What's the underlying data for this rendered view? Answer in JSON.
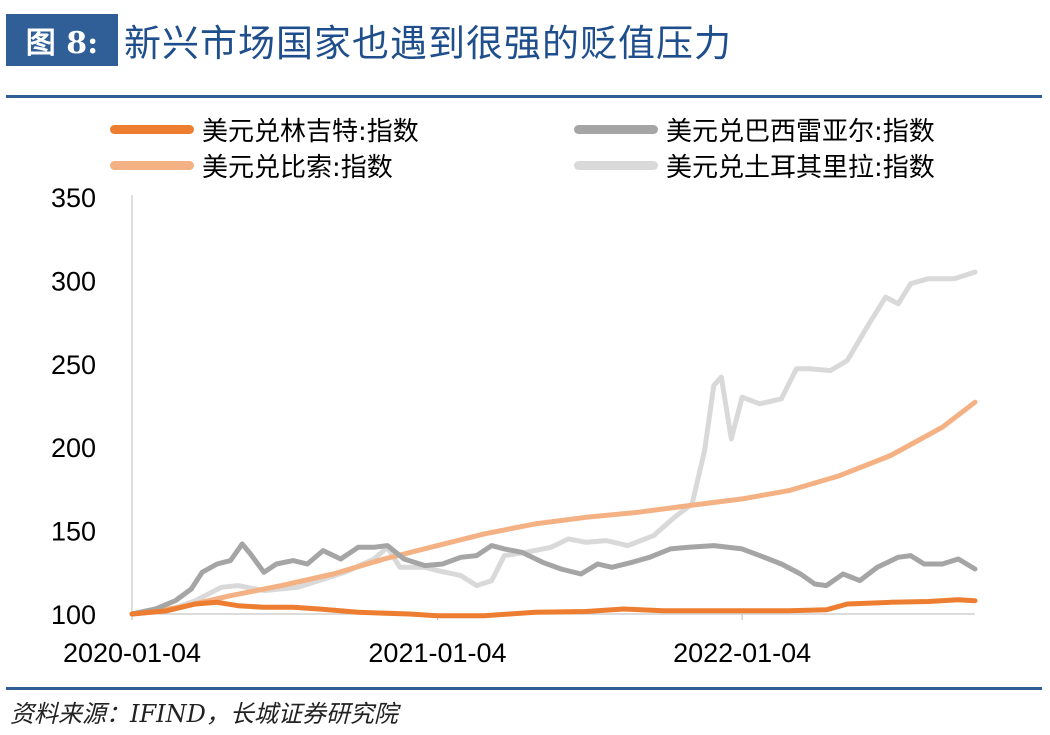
{
  "figure": {
    "badge": "图 8:",
    "title": "新兴市场国家也遇到很强的贬值压力",
    "source": "资料来源：IFIND，长城证券研究院"
  },
  "chart_data": {
    "type": "line",
    "title": "",
    "xlabel": "",
    "ylabel": "",
    "ylim": [
      100,
      350
    ],
    "yticks": [
      "350",
      "300",
      "250",
      "200",
      "150",
      "100"
    ],
    "xticks": [
      "2020-01-04",
      "2021-01-04",
      "2022-01-04"
    ],
    "x_range": [
      "2020-01-04",
      "2022-10-10"
    ],
    "grid": false,
    "legend_position": "top",
    "series": [
      {
        "name": "美元兑林吉特:指数",
        "color": "#ed7d31",
        "points": [
          [
            "2020-01-04",
            100
          ],
          [
            "2020-02-15",
            102
          ],
          [
            "2020-03-20",
            106
          ],
          [
            "2020-04-15",
            107
          ],
          [
            "2020-05-10",
            105
          ],
          [
            "2020-06-10",
            104
          ],
          [
            "2020-07-15",
            104
          ],
          [
            "2020-08-15",
            103
          ],
          [
            "2020-10-01",
            101
          ],
          [
            "2020-12-01",
            100
          ],
          [
            "2021-01-04",
            99
          ],
          [
            "2021-03-01",
            99
          ],
          [
            "2021-05-01",
            101
          ],
          [
            "2021-07-01",
            101.5
          ],
          [
            "2021-08-15",
            103
          ],
          [
            "2021-10-01",
            102
          ],
          [
            "2021-12-01",
            102
          ],
          [
            "2022-01-04",
            102
          ],
          [
            "2022-03-01",
            102
          ],
          [
            "2022-04-15",
            102.5
          ],
          [
            "2022-05-10",
            106
          ],
          [
            "2022-07-01",
            107
          ],
          [
            "2022-08-15",
            107.5
          ],
          [
            "2022-09-20",
            108.5
          ],
          [
            "2022-10-10",
            108
          ]
        ]
      },
      {
        "name": "美元兑巴西雷亚尔:指数",
        "color": "#a5a5a5",
        "points": [
          [
            "2020-01-04",
            100
          ],
          [
            "2020-02-01",
            103
          ],
          [
            "2020-02-25",
            108
          ],
          [
            "2020-03-15",
            115
          ],
          [
            "2020-03-28",
            125
          ],
          [
            "2020-04-15",
            130
          ],
          [
            "2020-05-01",
            132
          ],
          [
            "2020-05-15",
            142
          ],
          [
            "2020-05-25",
            136
          ],
          [
            "2020-06-10",
            125
          ],
          [
            "2020-06-25",
            130
          ],
          [
            "2020-07-15",
            132
          ],
          [
            "2020-08-01",
            130
          ],
          [
            "2020-08-20",
            138
          ],
          [
            "2020-09-10",
            133
          ],
          [
            "2020-10-01",
            140
          ],
          [
            "2020-10-20",
            140
          ],
          [
            "2020-11-05",
            141
          ],
          [
            "2020-11-25",
            133
          ],
          [
            "2020-12-20",
            129
          ],
          [
            "2021-01-10",
            130
          ],
          [
            "2021-02-01",
            134
          ],
          [
            "2021-02-20",
            135
          ],
          [
            "2021-03-10",
            141
          ],
          [
            "2021-03-25",
            139
          ],
          [
            "2021-04-15",
            137
          ],
          [
            "2021-05-10",
            131
          ],
          [
            "2021-06-01",
            127
          ],
          [
            "2021-06-25",
            124
          ],
          [
            "2021-07-15",
            130
          ],
          [
            "2021-08-01",
            128
          ],
          [
            "2021-08-25",
            131
          ],
          [
            "2021-09-15",
            134
          ],
          [
            "2021-10-10",
            139
          ],
          [
            "2021-11-01",
            140
          ],
          [
            "2021-12-01",
            141
          ],
          [
            "2022-01-04",
            139
          ],
          [
            "2022-01-25",
            135
          ],
          [
            "2022-02-20",
            130
          ],
          [
            "2022-03-15",
            124
          ],
          [
            "2022-04-01",
            118
          ],
          [
            "2022-04-15",
            117
          ],
          [
            "2022-05-05",
            124
          ],
          [
            "2022-05-25",
            120
          ],
          [
            "2022-06-15",
            128
          ],
          [
            "2022-07-10",
            134
          ],
          [
            "2022-07-25",
            135
          ],
          [
            "2022-08-10",
            130
          ],
          [
            "2022-09-01",
            130
          ],
          [
            "2022-09-20",
            133
          ],
          [
            "2022-10-10",
            127
          ]
        ]
      },
      {
        "name": "美元兑比索:指数",
        "color": "#f4b183",
        "points": [
          [
            "2020-01-04",
            100
          ],
          [
            "2020-03-01",
            104
          ],
          [
            "2020-05-01",
            111
          ],
          [
            "2020-07-01",
            117
          ],
          [
            "2020-09-01",
            124
          ],
          [
            "2020-11-01",
            133
          ],
          [
            "2021-01-04",
            141
          ],
          [
            "2021-03-01",
            148
          ],
          [
            "2021-05-01",
            154
          ],
          [
            "2021-07-01",
            158
          ],
          [
            "2021-09-01",
            161
          ],
          [
            "2021-11-01",
            165
          ],
          [
            "2022-01-04",
            169
          ],
          [
            "2022-03-01",
            174
          ],
          [
            "2022-05-01",
            183
          ],
          [
            "2022-07-01",
            195
          ],
          [
            "2022-09-01",
            212
          ],
          [
            "2022-10-10",
            227
          ]
        ]
      },
      {
        "name": "美元兑土耳其里拉:指数",
        "color": "#d9d9d9",
        "points": [
          [
            "2020-01-04",
            100
          ],
          [
            "2020-02-15",
            102
          ],
          [
            "2020-03-20",
            108
          ],
          [
            "2020-04-20",
            116
          ],
          [
            "2020-05-10",
            117
          ],
          [
            "2020-06-10",
            114
          ],
          [
            "2020-07-20",
            116
          ],
          [
            "2020-08-15",
            120
          ],
          [
            "2020-09-15",
            125
          ],
          [
            "2020-10-20",
            133
          ],
          [
            "2020-11-05",
            140
          ],
          [
            "2020-11-20",
            128
          ],
          [
            "2020-12-20",
            128
          ],
          [
            "2021-01-04",
            126
          ],
          [
            "2021-02-01",
            123
          ],
          [
            "2021-02-20",
            117
          ],
          [
            "2021-03-10",
            120
          ],
          [
            "2021-03-25",
            135
          ],
          [
            "2021-04-20",
            137
          ],
          [
            "2021-05-20",
            140
          ],
          [
            "2021-06-10",
            145
          ],
          [
            "2021-07-01",
            143
          ],
          [
            "2021-07-25",
            144
          ],
          [
            "2021-08-20",
            141
          ],
          [
            "2021-09-20",
            147
          ],
          [
            "2021-10-15",
            158
          ],
          [
            "2021-11-05",
            166
          ],
          [
            "2021-11-20",
            198
          ],
          [
            "2021-12-01",
            237
          ],
          [
            "2021-12-10",
            242
          ],
          [
            "2021-12-22",
            205
          ],
          [
            "2022-01-04",
            230
          ],
          [
            "2022-01-25",
            226
          ],
          [
            "2022-02-20",
            229
          ],
          [
            "2022-03-10",
            247
          ],
          [
            "2022-03-25",
            247
          ],
          [
            "2022-04-20",
            246
          ],
          [
            "2022-05-10",
            252
          ],
          [
            "2022-06-05",
            274
          ],
          [
            "2022-06-25",
            290
          ],
          [
            "2022-07-10",
            286
          ],
          [
            "2022-07-25",
            298
          ],
          [
            "2022-08-15",
            301
          ],
          [
            "2022-09-15",
            301
          ],
          [
            "2022-10-10",
            305
          ]
        ]
      }
    ]
  }
}
